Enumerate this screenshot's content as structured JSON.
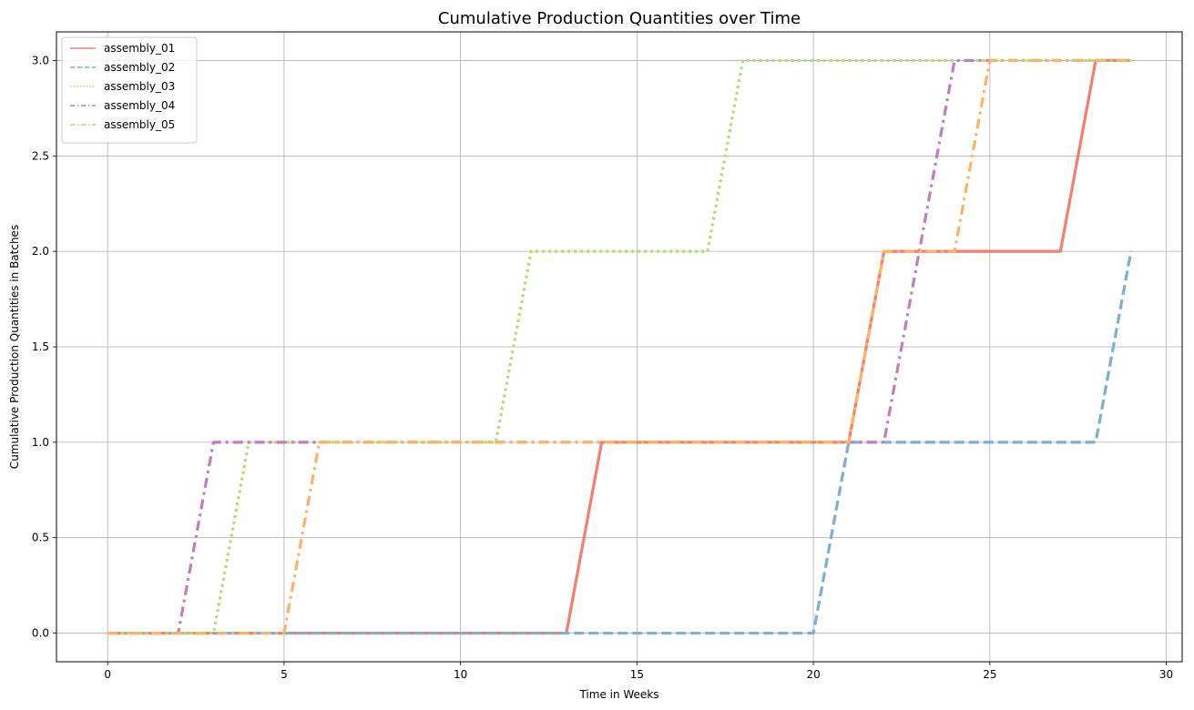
{
  "chart_data": {
    "type": "line",
    "title": "Cumulative Production Quantities over Time",
    "xlabel": "Time in Weeks",
    "ylabel": "Cumulative Production Quantities in Batches",
    "xlim": [
      -1.45,
      30.45
    ],
    "ylim": [
      -0.15,
      3.15
    ],
    "xticks": [
      0,
      5,
      10,
      15,
      20,
      25,
      30
    ],
    "xtick_labels": [
      "0",
      "5",
      "10",
      "15",
      "20",
      "25",
      "30"
    ],
    "yticks": [
      0.0,
      0.5,
      1.0,
      1.5,
      2.0,
      2.5,
      3.0
    ],
    "ytick_labels": [
      "0.0",
      "0.5",
      "1.0",
      "1.5",
      "2.0",
      "2.5",
      "3.0"
    ],
    "grid": true,
    "legend_position": "top-left",
    "x": [
      0,
      1,
      2,
      3,
      4,
      5,
      6,
      7,
      8,
      9,
      10,
      11,
      12,
      13,
      14,
      15,
      16,
      17,
      18,
      19,
      20,
      21,
      22,
      23,
      24,
      25,
      26,
      27,
      28,
      29
    ],
    "series": [
      {
        "name": "assembly_01",
        "color": "#f47f6e",
        "style": "solid",
        "values": [
          0,
          0,
          0,
          0,
          0,
          0,
          0,
          0,
          0,
          0,
          0,
          0,
          0,
          0,
          1,
          1,
          1,
          1,
          1,
          1,
          1,
          1,
          2,
          2,
          2,
          2,
          2,
          2,
          3,
          3
        ]
      },
      {
        "name": "assembly_02",
        "color": "#7cafd4",
        "style": "dashed",
        "values": [
          0,
          0,
          0,
          0,
          0,
          0,
          0,
          0,
          0,
          0,
          0,
          0,
          0,
          0,
          0,
          0,
          0,
          0,
          0,
          0,
          0,
          1,
          1,
          1,
          1,
          1,
          1,
          1,
          1,
          2
        ]
      },
      {
        "name": "assembly_03",
        "color": "#b3de69",
        "style": "dotted",
        "values": [
          0,
          0,
          0,
          0,
          1,
          1,
          1,
          1,
          1,
          1,
          1,
          1,
          2,
          2,
          2,
          2,
          2,
          2,
          3,
          3,
          3,
          3,
          3,
          3,
          3,
          3,
          3,
          3,
          3,
          3
        ]
      },
      {
        "name": "assembly_04",
        "color": "#bf7fbf",
        "style": "dashdot",
        "values": [
          0,
          0,
          0,
          1,
          1,
          1,
          1,
          1,
          1,
          1,
          1,
          1,
          1,
          1,
          1,
          1,
          1,
          1,
          1,
          1,
          1,
          1,
          1,
          2,
          3,
          3,
          3,
          3,
          3,
          3
        ]
      },
      {
        "name": "assembly_05",
        "color": "#fdb462",
        "style": "dashdot",
        "values": [
          0,
          0,
          0,
          0,
          0,
          0,
          1,
          1,
          1,
          1,
          1,
          1,
          1,
          1,
          1,
          1,
          1,
          1,
          1,
          1,
          1,
          1,
          2,
          2,
          2,
          3,
          3,
          3,
          3,
          3
        ]
      }
    ]
  }
}
